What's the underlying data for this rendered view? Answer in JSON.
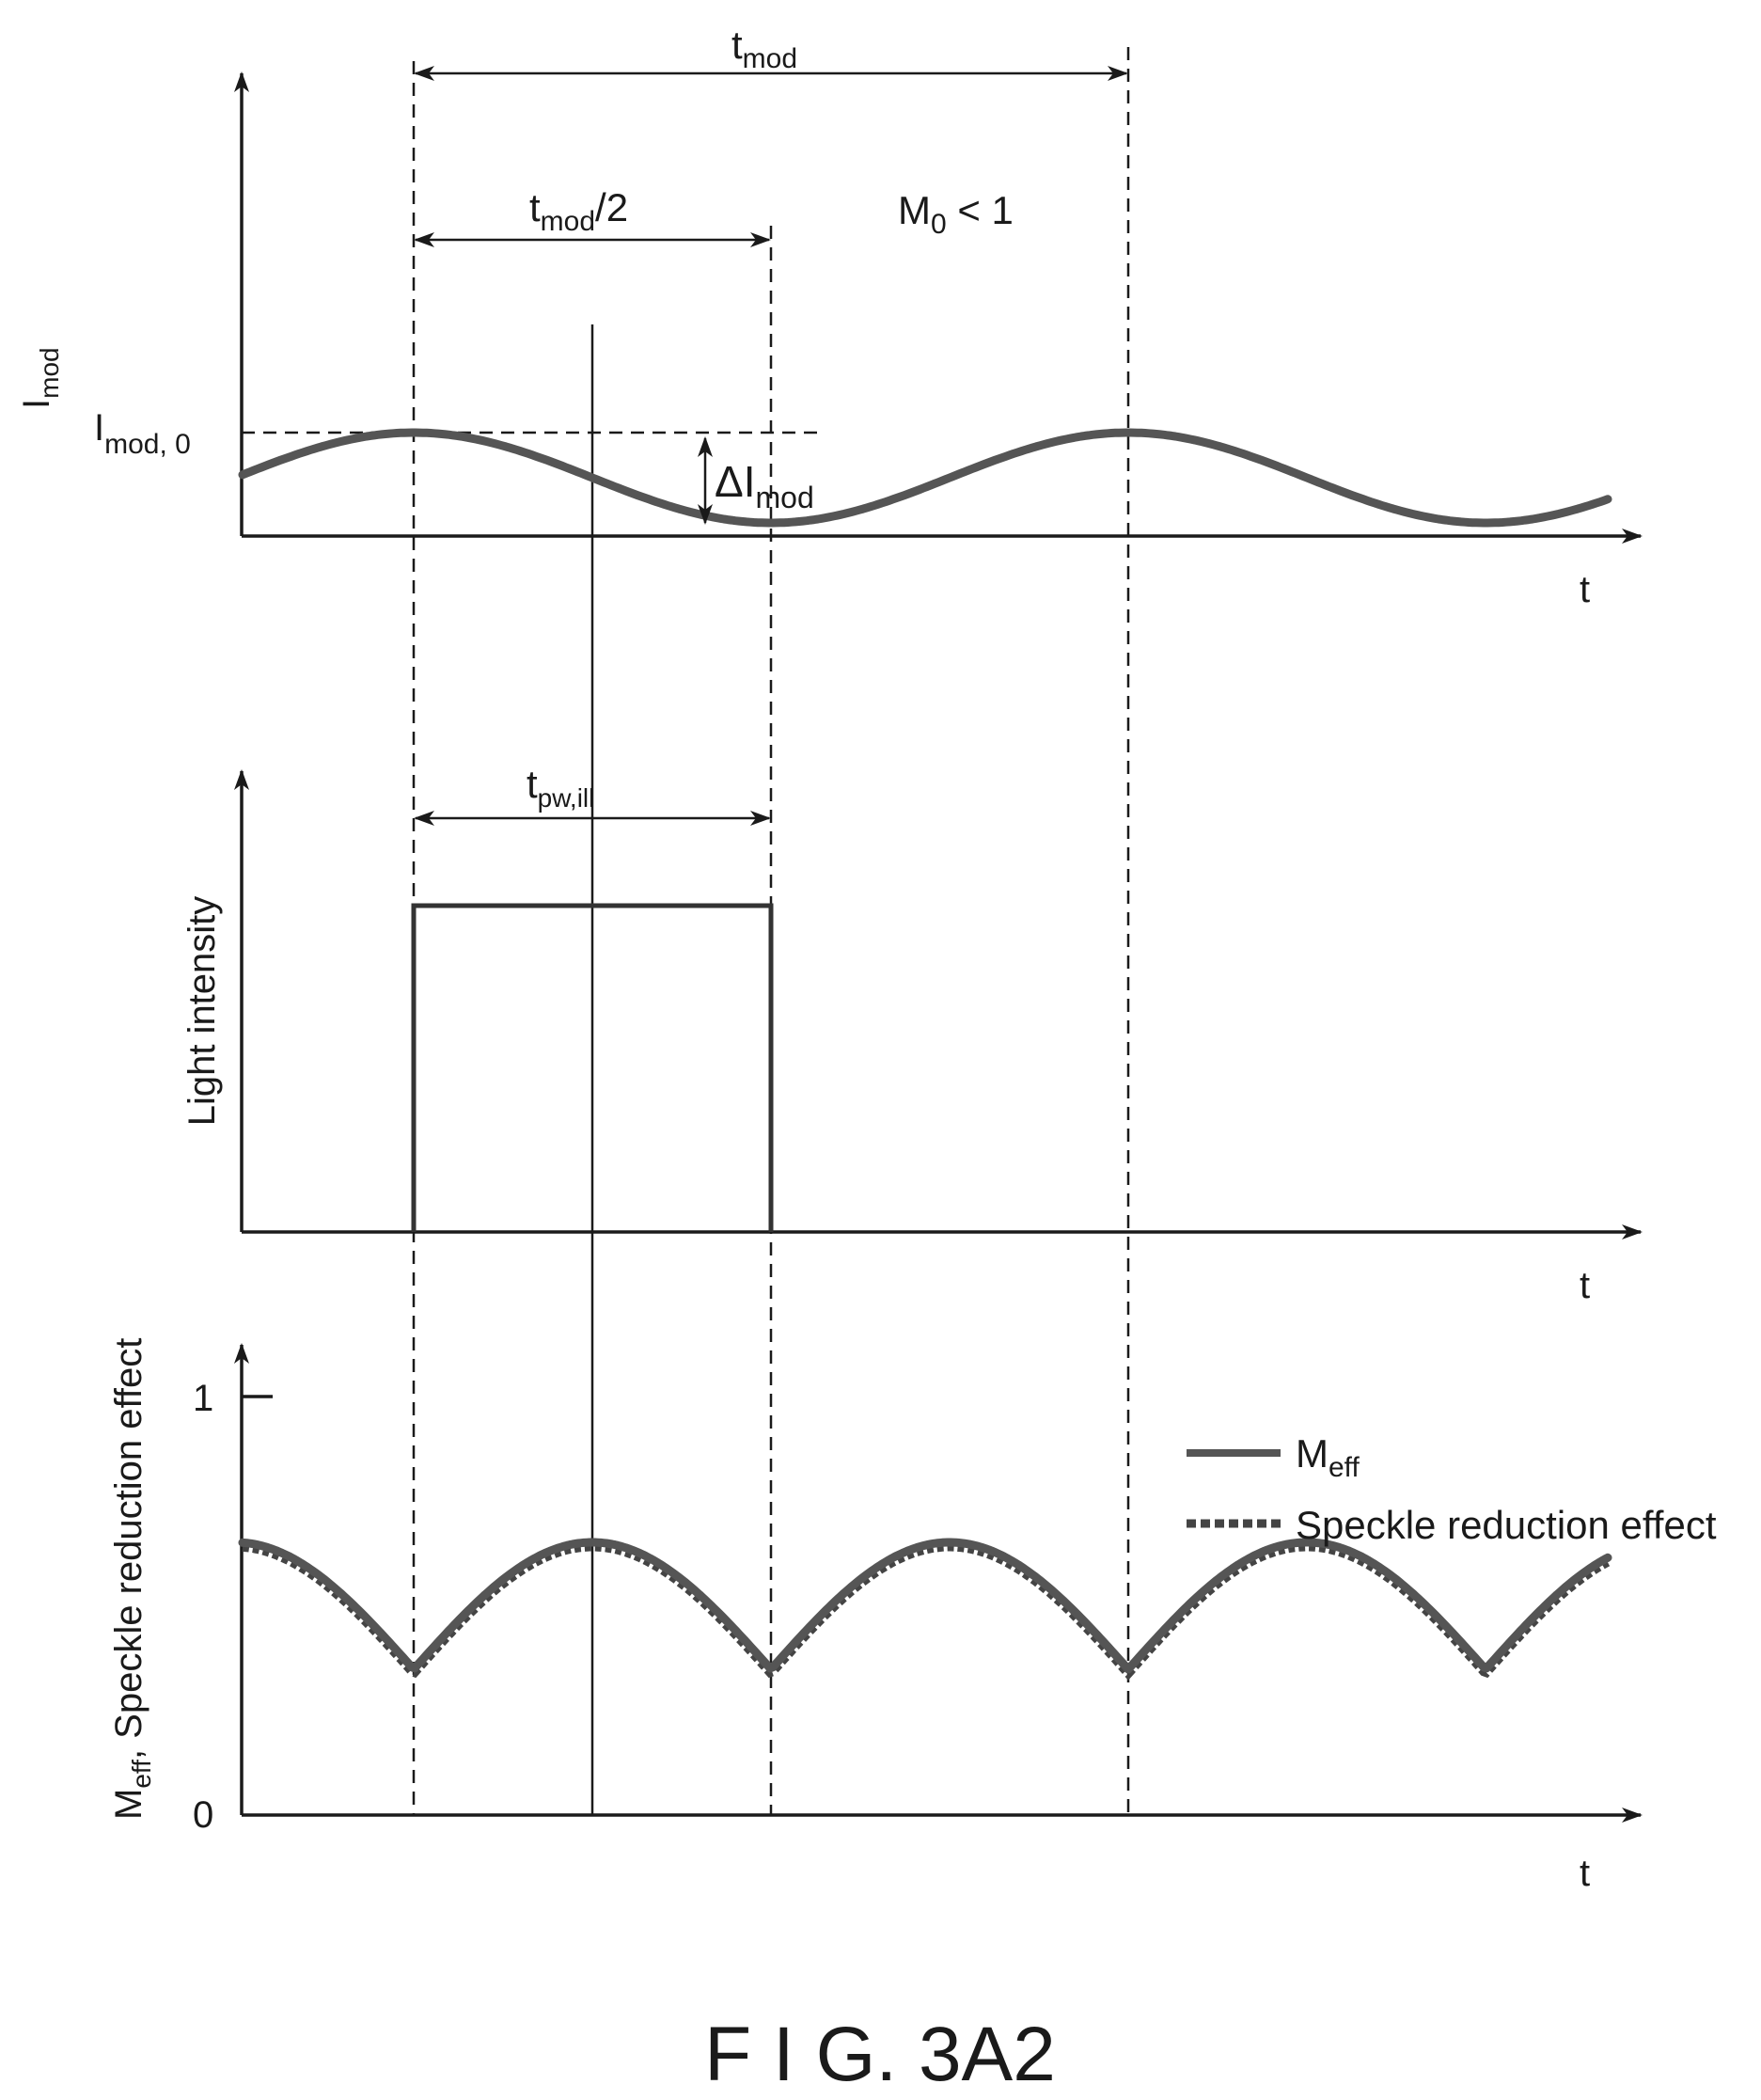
{
  "figure": {
    "caption": "F I G. 3A2"
  },
  "panel_top": {
    "ylabel_main": "I",
    "ylabel_sub": "mod",
    "level_label_main": "I",
    "level_label_sub": "mod, 0",
    "xlabel": "t",
    "tmod_main": "t",
    "tmod_sub": "mod",
    "thalf_main": "t",
    "thalf_sub": "mod",
    "thalf_suffix": "/2",
    "m0_main": "M",
    "m0_sub": "0",
    "m0_suffix": " < 1",
    "delta_main": "ΔI",
    "delta_sub": "mod"
  },
  "panel_mid": {
    "ylabel": "Light intensity",
    "xlabel": "t",
    "tpw_main": "t",
    "tpw_sub": "pw,ill"
  },
  "panel_bottom": {
    "ylabel_main": "M",
    "ylabel_sub": "eff",
    "ylabel_suffix": ", Speckle reduction effect",
    "xlabel": "t",
    "tick_1": "1",
    "tick_0": "0",
    "legend": [
      {
        "main": "M",
        "sub": "eff",
        "style": "solid"
      },
      {
        "main": "Speckle reduction effect",
        "sub": "",
        "style": "dotted"
      }
    ]
  }
}
